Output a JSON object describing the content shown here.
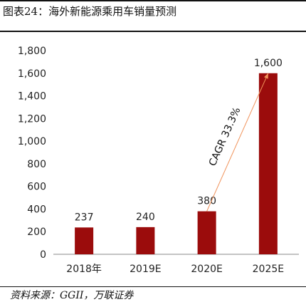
{
  "figure": {
    "title": "图表24：海外新能源乘用车销量预测",
    "source": "资料来源：GGII，万联证券"
  },
  "colors": {
    "bar": "#9b0c0c",
    "arrow": "#f0935b",
    "text": "#222222"
  },
  "chart_data": {
    "type": "bar",
    "categories": [
      "2018年",
      "2019E",
      "2020E",
      "2025E"
    ],
    "values": [
      237,
      240,
      380,
      1600
    ],
    "data_labels": [
      "237",
      "240",
      "380",
      "1,600"
    ],
    "ylim": [
      0,
      1800
    ],
    "yticks": [
      "0",
      "200",
      "400",
      "600",
      "800",
      "1,000",
      "1,200",
      "1,400",
      "1,600",
      "1,800"
    ],
    "annotation": {
      "text": "CAGR 33.3%",
      "from_category": "2020E",
      "to_category": "2025E"
    },
    "grid": false,
    "legend": "none"
  }
}
